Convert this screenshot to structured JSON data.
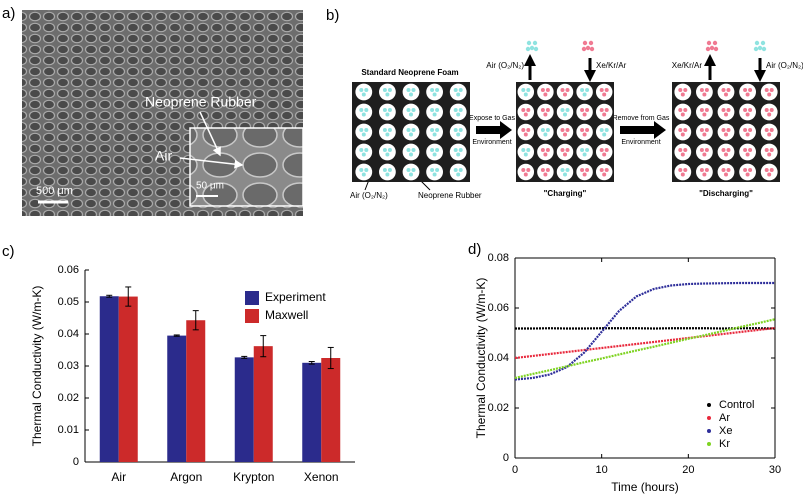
{
  "sem": {
    "panel_label": "a)",
    "label_rubber": "Neoprene Rubber",
    "label_air": "Air",
    "scale_main": "500 μm",
    "scale_inset": "50 μm"
  },
  "diagram": {
    "panel_label": "b)",
    "foam_title": "Standard Neoprene Foam",
    "air_label": "Air (O₂/N₂)",
    "rubber_label": "Neoprene Rubber",
    "step1": [
      "Expose to Gas",
      "Environment"
    ],
    "charging_out": "Air (O₂/N₂)",
    "charging_in": "Xe/Kr/Ar",
    "charging_label": "\"Charging\"",
    "step2": [
      "Remove from Gas",
      "Environment"
    ],
    "discharging_out": "Xe/Kr/Ar",
    "discharging_in": "Air (O₂/N₂)",
    "discharging_label": "\"Discharging\""
  },
  "chart_data": [
    {
      "type": "bar",
      "panel_label": "c)",
      "y_label": "Thermal Conductivity (W/m-K)",
      "categories": [
        "Air",
        "Argon",
        "Krypton",
        "Xenon"
      ],
      "series": [
        {
          "name": "Experiment",
          "color": "#2b2b8c",
          "values": [
            0.0518,
            0.0395,
            0.0327,
            0.031
          ],
          "errors": [
            0.0003,
            0.0002,
            0.0003,
            0.0004
          ]
        },
        {
          "name": "Maxwell",
          "color": "#cc2a2a",
          "values": [
            0.0517,
            0.0443,
            0.0362,
            0.0325
          ],
          "errors": [
            0.003,
            0.003,
            0.0033,
            0.0033
          ]
        }
      ],
      "ylim": [
        0,
        0.06
      ],
      "yticks": [
        0,
        0.01,
        0.02,
        0.03,
        0.04,
        0.05,
        0.06
      ],
      "legend": "upper right",
      "frame": false
    },
    {
      "type": "line",
      "panel_label": "d)",
      "x_label": "Time (hours)",
      "y_label": "Thermal Conductivity (W/m-K)",
      "x": [
        0,
        2,
        4,
        6,
        8,
        10,
        12,
        14,
        16,
        18,
        20,
        22,
        24,
        26,
        28,
        30
      ],
      "series": [
        {
          "name": "Control",
          "color": "#000000",
          "values": [
            0.0518,
            0.0518,
            0.0519,
            0.0518,
            0.0518,
            0.0519,
            0.0519,
            0.0519,
            0.0518,
            0.0519,
            0.0519,
            0.0519,
            0.0518,
            0.0519,
            0.0519,
            0.0518
          ]
        },
        {
          "name": "Ar",
          "color": "#e8283c",
          "values": [
            0.04,
            0.0408,
            0.0416,
            0.0424,
            0.0432,
            0.044,
            0.0448,
            0.0456,
            0.0464,
            0.0472,
            0.048,
            0.0488,
            0.0496,
            0.0504,
            0.0512,
            0.052
          ]
        },
        {
          "name": "Xe",
          "color": "#2e2e9a",
          "values": [
            0.0314,
            0.032,
            0.0334,
            0.0364,
            0.0422,
            0.0505,
            0.0588,
            0.0646,
            0.0676,
            0.069,
            0.0696,
            0.0698,
            0.0699,
            0.07,
            0.07,
            0.07
          ]
        },
        {
          "name": "Kr",
          "color": "#7ed321",
          "values": [
            0.032,
            0.0336,
            0.0351,
            0.0367,
            0.0383,
            0.0398,
            0.0414,
            0.043,
            0.0445,
            0.0461,
            0.0477,
            0.0492,
            0.0508,
            0.0524,
            0.0539,
            0.0555
          ]
        }
      ],
      "xlim": [
        0,
        30
      ],
      "xticks": [
        0,
        10,
        20,
        30
      ],
      "ylim": [
        0,
        0.08
      ],
      "yticks": [
        0,
        0.02,
        0.04,
        0.06,
        0.08
      ],
      "legend": "lower right",
      "frame": true
    }
  ]
}
